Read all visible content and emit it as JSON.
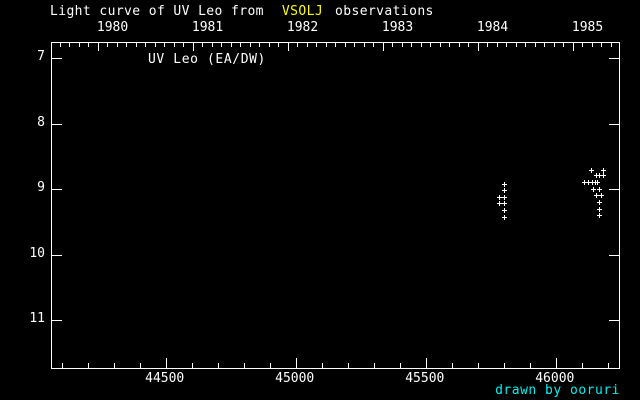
{
  "title": {
    "part1": "Light curve of UV Leo from",
    "part2": "VSOLJ",
    "part3": "observations"
  },
  "labels": {
    "inner": "UV Leo (EA/DW)",
    "credit": "drawn by ooruri"
  },
  "colors": {
    "background": "#000000",
    "foreground": "#ffffff",
    "highlight": "#ffff00",
    "credit": "#00f0f0"
  },
  "chart_data": {
    "type": "scatter",
    "title": "Light curve of UV Leo from VSOLJ observations",
    "annotation": "UV Leo (EA/DW)",
    "marker": "plus",
    "grid": false,
    "x_axis": {
      "unit": "JD - 2400000",
      "min": 44063,
      "max": 46243,
      "major_ticks": [
        44500,
        45000,
        45500,
        46000
      ],
      "tick_labels": [
        "44500",
        "45000",
        "45500",
        "46000"
      ],
      "minor_step": 100
    },
    "top_axis": {
      "unit": "year",
      "labels": [
        "1980",
        "1981",
        "1982",
        "1983",
        "1984",
        "1985"
      ],
      "jd_of_1980": 44239.5,
      "days_per_year": 365.25,
      "minor_divisions_per_year": 10
    },
    "y_axis": {
      "unit": "magnitude",
      "top": 6.77,
      "bottom": 11.73,
      "major_ticks": [
        7,
        8,
        9,
        10,
        11
      ],
      "tick_labels": [
        "7",
        "8",
        "9",
        "10",
        "11"
      ]
    },
    "series": [
      {
        "name": "UV Leo VSOLJ observations",
        "points": [
          [
            45780,
            9.12
          ],
          [
            45780,
            9.21
          ],
          [
            45799,
            8.92
          ],
          [
            45799,
            9.02
          ],
          [
            45799,
            9.12
          ],
          [
            45799,
            9.21
          ],
          [
            45799,
            9.32
          ],
          [
            45799,
            9.42
          ],
          [
            46109,
            8.89
          ],
          [
            46125,
            8.89
          ],
          [
            46136,
            8.7
          ],
          [
            46140,
            8.89
          ],
          [
            46144,
            9.0
          ],
          [
            46151,
            8.89
          ],
          [
            46155,
            8.79
          ],
          [
            46155,
            9.09
          ],
          [
            46160,
            8.89
          ],
          [
            46167,
            8.79
          ],
          [
            46167,
            9.0
          ],
          [
            46167,
            9.2
          ],
          [
            46167,
            9.3
          ],
          [
            46167,
            9.39
          ],
          [
            46174,
            9.09
          ],
          [
            46182,
            8.7
          ],
          [
            46182,
            8.79
          ]
        ]
      }
    ]
  }
}
